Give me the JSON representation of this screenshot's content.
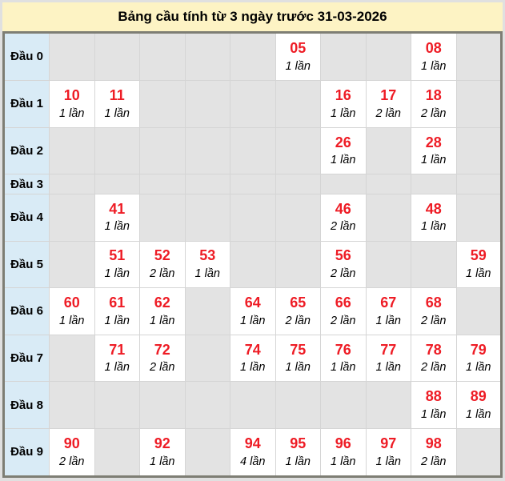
{
  "title": "Bảng cầu tính từ 3 ngày trước 31-03-2026",
  "colors": {
    "accent_red": "#ee1c25",
    "title_bg": "#fdf3c4",
    "row_header_bg": "#d9ebf6",
    "empty_cell_bg": "#e3e3e3",
    "filled_cell_bg": "#ffffff",
    "table_border": "#7e7e74"
  },
  "table": {
    "columns": 10,
    "rows": [
      {
        "label": "Đầu 0",
        "cells": [
          null,
          null,
          null,
          null,
          null,
          {
            "num": "05",
            "count": "1 lần"
          },
          null,
          null,
          {
            "num": "08",
            "count": "1 lần"
          },
          null
        ]
      },
      {
        "label": "Đầu 1",
        "cells": [
          {
            "num": "10",
            "count": "1 lần"
          },
          {
            "num": "11",
            "count": "1 lần"
          },
          null,
          null,
          null,
          null,
          {
            "num": "16",
            "count": "1 lần"
          },
          {
            "num": "17",
            "count": "2 lần"
          },
          {
            "num": "18",
            "count": "2 lần"
          },
          null
        ]
      },
      {
        "label": "Đầu 2",
        "cells": [
          null,
          null,
          null,
          null,
          null,
          null,
          {
            "num": "26",
            "count": "1 lần"
          },
          null,
          {
            "num": "28",
            "count": "1 lần"
          },
          null
        ]
      },
      {
        "label": "Đầu 3",
        "cells": [
          null,
          null,
          null,
          null,
          null,
          null,
          null,
          null,
          null,
          null
        ]
      },
      {
        "label": "Đầu 4",
        "cells": [
          null,
          {
            "num": "41",
            "count": "1 lần"
          },
          null,
          null,
          null,
          null,
          {
            "num": "46",
            "count": "2 lần"
          },
          null,
          {
            "num": "48",
            "count": "1 lần"
          },
          null
        ]
      },
      {
        "label": "Đầu 5",
        "cells": [
          null,
          {
            "num": "51",
            "count": "1 lần"
          },
          {
            "num": "52",
            "count": "2 lần"
          },
          {
            "num": "53",
            "count": "1 lần"
          },
          null,
          null,
          {
            "num": "56",
            "count": "2 lần"
          },
          null,
          null,
          {
            "num": "59",
            "count": "1 lần"
          }
        ]
      },
      {
        "label": "Đầu 6",
        "cells": [
          {
            "num": "60",
            "count": "1 lần"
          },
          {
            "num": "61",
            "count": "1 lần"
          },
          {
            "num": "62",
            "count": "1 lần"
          },
          null,
          {
            "num": "64",
            "count": "1 lần"
          },
          {
            "num": "65",
            "count": "2 lần"
          },
          {
            "num": "66",
            "count": "2 lần"
          },
          {
            "num": "67",
            "count": "1 lần"
          },
          {
            "num": "68",
            "count": "2 lần"
          },
          null
        ]
      },
      {
        "label": "Đầu 7",
        "cells": [
          null,
          {
            "num": "71",
            "count": "1 lần"
          },
          {
            "num": "72",
            "count": "2 lần"
          },
          null,
          {
            "num": "74",
            "count": "1 lần"
          },
          {
            "num": "75",
            "count": "1 lần"
          },
          {
            "num": "76",
            "count": "1 lần"
          },
          {
            "num": "77",
            "count": "1 lần"
          },
          {
            "num": "78",
            "count": "2 lần"
          },
          {
            "num": "79",
            "count": "1 lần"
          }
        ]
      },
      {
        "label": "Đầu 8",
        "cells": [
          null,
          null,
          null,
          null,
          null,
          null,
          null,
          null,
          {
            "num": "88",
            "count": "1 lần"
          },
          {
            "num": "89",
            "count": "1 lần"
          }
        ]
      },
      {
        "label": "Đầu 9",
        "cells": [
          {
            "num": "90",
            "count": "2 lần"
          },
          null,
          {
            "num": "92",
            "count": "1 lần"
          },
          null,
          {
            "num": "94",
            "count": "4 lần"
          },
          {
            "num": "95",
            "count": "1 lần"
          },
          {
            "num": "96",
            "count": "1 lần"
          },
          {
            "num": "97",
            "count": "1 lần"
          },
          {
            "num": "98",
            "count": "2 lần"
          },
          null
        ]
      }
    ]
  }
}
